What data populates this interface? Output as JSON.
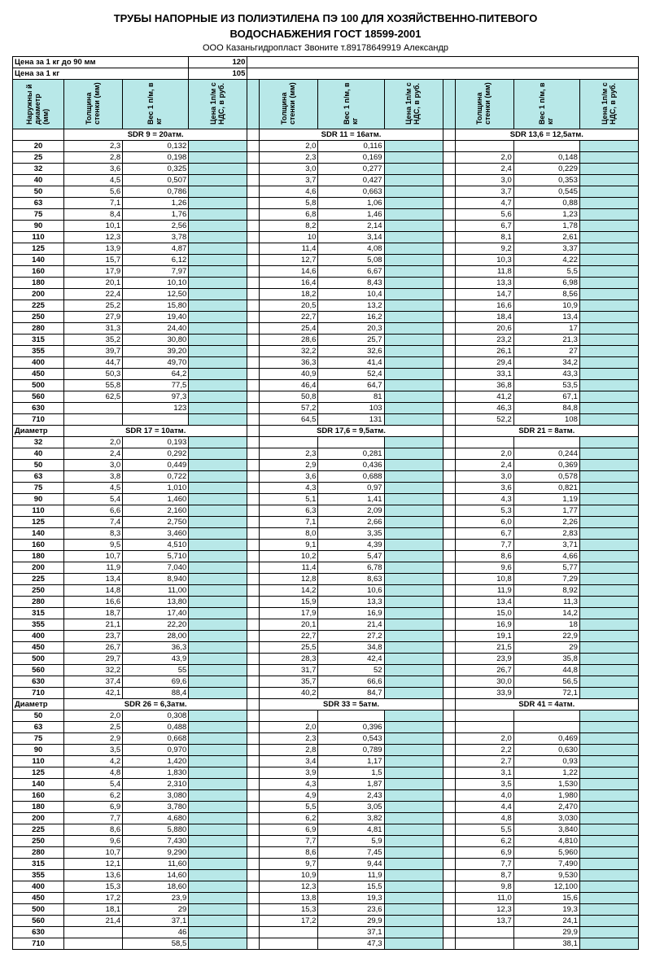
{
  "title1": "ТРУБЫ НАПОРНЫЕ ИЗ ПОЛИЭТИЛЕНА ПЭ 100 ДЛЯ ХОЗЯЙСТВЕННО-ПИТЕВОГО",
  "title2": "ВОДОСНАБЖЕНИЯ ГОСТ 18599-2001",
  "company": "ООО Казаньгидропласт    Звоните т.89178649919 Александр",
  "priceRow1_label": "Цена за 1 кг до 90  мм",
  "priceRow1_val": "120",
  "priceRow2_label": "Цена за 1 кг",
  "priceRow2_val": "105",
  "headers": {
    "diameter": "Наружны й диаметр (мм)",
    "thickness": "Толщина стенки (мм)",
    "weight": "Вес 1 п/м, в кг",
    "price": "Цена 1п/м с НДС, в руб."
  },
  "section_label": "Диаметр",
  "blocks": [
    {
      "sdr": [
        "SDR 9 = 20атм.",
        "SDR 11 = 16атм.",
        "SDR 13,6 = 12,5атм."
      ],
      "rows": [
        {
          "d": "20",
          "a": [
            "2,3",
            "0,132"
          ],
          "b": [
            "2,0",
            "0,116"
          ],
          "c": [
            "",
            ""
          ]
        },
        {
          "d": "25",
          "a": [
            "2,8",
            "0,198"
          ],
          "b": [
            "2,3",
            "0,169"
          ],
          "c": [
            "2,0",
            "0,148"
          ]
        },
        {
          "d": "32",
          "a": [
            "3,6",
            "0,325"
          ],
          "b": [
            "3,0",
            "0,277"
          ],
          "c": [
            "2,4",
            "0,229"
          ]
        },
        {
          "d": "40",
          "a": [
            "4,5",
            "0,507"
          ],
          "b": [
            "3,7",
            "0,427"
          ],
          "c": [
            "3,0",
            "0,353"
          ]
        },
        {
          "d": "50",
          "a": [
            "5,6",
            "0,786"
          ],
          "b": [
            "4,6",
            "0,663"
          ],
          "c": [
            "3,7",
            "0,545"
          ]
        },
        {
          "d": "63",
          "a": [
            "7,1",
            "1,26"
          ],
          "b": [
            "5,8",
            "1,06"
          ],
          "c": [
            "4,7",
            "0,88"
          ]
        },
        {
          "d": "75",
          "a": [
            "8,4",
            "1,76"
          ],
          "b": [
            "6,8",
            "1,46"
          ],
          "c": [
            "5,6",
            "1,23"
          ]
        },
        {
          "d": "90",
          "a": [
            "10,1",
            "2,56"
          ],
          "b": [
            "8,2",
            "2,14"
          ],
          "c": [
            "6,7",
            "1,78"
          ]
        },
        {
          "d": "110",
          "a": [
            "12,3",
            "3,78"
          ],
          "b": [
            "10",
            "3,14"
          ],
          "c": [
            "8,1",
            "2,61"
          ]
        },
        {
          "d": "125",
          "a": [
            "13,9",
            "4,87"
          ],
          "b": [
            "11,4",
            "4,08"
          ],
          "c": [
            "9,2",
            "3,37"
          ]
        },
        {
          "d": "140",
          "a": [
            "15,7",
            "6,12"
          ],
          "b": [
            "12,7",
            "5,08"
          ],
          "c": [
            "10,3",
            "4,22"
          ]
        },
        {
          "d": "160",
          "a": [
            "17,9",
            "7,97"
          ],
          "b": [
            "14,6",
            "6,67"
          ],
          "c": [
            "11,8",
            "5,5"
          ]
        },
        {
          "d": "180",
          "a": [
            "20,1",
            "10,10"
          ],
          "b": [
            "16,4",
            "8,43"
          ],
          "c": [
            "13,3",
            "6,98"
          ]
        },
        {
          "d": "200",
          "a": [
            "22,4",
            "12,50"
          ],
          "b": [
            "18,2",
            "10,4"
          ],
          "c": [
            "14,7",
            "8,56"
          ]
        },
        {
          "d": "225",
          "a": [
            "25,2",
            "15,80"
          ],
          "b": [
            "20,5",
            "13,2"
          ],
          "c": [
            "16,6",
            "10,9"
          ]
        },
        {
          "d": "250",
          "a": [
            "27,9",
            "19,40"
          ],
          "b": [
            "22,7",
            "16,2"
          ],
          "c": [
            "18,4",
            "13,4"
          ]
        },
        {
          "d": "280",
          "a": [
            "31,3",
            "24,40"
          ],
          "b": [
            "25,4",
            "20,3"
          ],
          "c": [
            "20,6",
            "17"
          ]
        },
        {
          "d": "315",
          "a": [
            "35,2",
            "30,80"
          ],
          "b": [
            "28,6",
            "25,7"
          ],
          "c": [
            "23,2",
            "21,3"
          ]
        },
        {
          "d": "355",
          "a": [
            "39,7",
            "39,20"
          ],
          "b": [
            "32,2",
            "32,6"
          ],
          "c": [
            "26,1",
            "27"
          ]
        },
        {
          "d": "400",
          "a": [
            "44,7",
            "49,70"
          ],
          "b": [
            "36,3",
            "41,4"
          ],
          "c": [
            "29,4",
            "34,2"
          ]
        },
        {
          "d": "450",
          "a": [
            "50,3",
            "64,2"
          ],
          "b": [
            "40,9",
            "52,4"
          ],
          "c": [
            "33,1",
            "43,3"
          ]
        },
        {
          "d": "500",
          "a": [
            "55,8",
            "77,5"
          ],
          "b": [
            "46,4",
            "64,7"
          ],
          "c": [
            "36,8",
            "53,5"
          ]
        },
        {
          "d": "560",
          "a": [
            "62,5",
            "97,3"
          ],
          "b": [
            "50,8",
            "81"
          ],
          "c": [
            "41,2",
            "67,1"
          ]
        },
        {
          "d": "630",
          "a": [
            "",
            "123"
          ],
          "b": [
            "57,2",
            "103"
          ],
          "c": [
            "46,3",
            "84,8"
          ]
        },
        {
          "d": "710",
          "a": [
            "",
            ""
          ],
          "b": [
            "64,5",
            "131"
          ],
          "c": [
            "52,2",
            "108"
          ]
        }
      ]
    },
    {
      "sdr": [
        "SDR 17 = 10атм.",
        "SDR 17,6 = 9,5атм.",
        "SDR 21 = 8атм."
      ],
      "rows": [
        {
          "d": "32",
          "a": [
            "2,0",
            "0,193"
          ],
          "b": [
            "",
            ""
          ],
          "c": [
            "",
            ""
          ]
        },
        {
          "d": "40",
          "a": [
            "2,4",
            "0,292"
          ],
          "b": [
            "2,3",
            "0,281"
          ],
          "c": [
            "2,0",
            "0,244"
          ]
        },
        {
          "d": "50",
          "a": [
            "3,0",
            "0,449"
          ],
          "b": [
            "2,9",
            "0,436"
          ],
          "c": [
            "2,4",
            "0,369"
          ]
        },
        {
          "d": "63",
          "a": [
            "3,8",
            "0,722"
          ],
          "b": [
            "3,6",
            "0,688"
          ],
          "c": [
            "3,0",
            "0,578"
          ]
        },
        {
          "d": "75",
          "a": [
            "4,5",
            "1,010"
          ],
          "b": [
            "4,3",
            "0,97"
          ],
          "c": [
            "3,6",
            "0,821"
          ]
        },
        {
          "d": "90",
          "a": [
            "5,4",
            "1,460"
          ],
          "b": [
            "5,1",
            "1,41"
          ],
          "c": [
            "4,3",
            "1,19"
          ]
        },
        {
          "d": "110",
          "a": [
            "6,6",
            "2,160"
          ],
          "b": [
            "6,3",
            "2,09"
          ],
          "c": [
            "5,3",
            "1,77"
          ]
        },
        {
          "d": "125",
          "a": [
            "7,4",
            "2,750"
          ],
          "b": [
            "7,1",
            "2,66"
          ],
          "c": [
            "6,0",
            "2,26"
          ]
        },
        {
          "d": "140",
          "a": [
            "8,3",
            "3,460"
          ],
          "b": [
            "8,0",
            "3,35"
          ],
          "c": [
            "6,7",
            "2,83"
          ]
        },
        {
          "d": "160",
          "a": [
            "9,5",
            "4,510"
          ],
          "b": [
            "9,1",
            "4,39"
          ],
          "c": [
            "7,7",
            "3,71"
          ]
        },
        {
          "d": "180",
          "a": [
            "10,7",
            "5,710"
          ],
          "b": [
            "10,2",
            "5,47"
          ],
          "c": [
            "8,6",
            "4,66"
          ]
        },
        {
          "d": "200",
          "a": [
            "11,9",
            "7,040"
          ],
          "b": [
            "11,4",
            "6,78"
          ],
          "c": [
            "9,6",
            "5,77"
          ]
        },
        {
          "d": "225",
          "a": [
            "13,4",
            "8,940"
          ],
          "b": [
            "12,8",
            "8,63"
          ],
          "c": [
            "10,8",
            "7,29"
          ]
        },
        {
          "d": "250",
          "a": [
            "14,8",
            "11,00"
          ],
          "b": [
            "14,2",
            "10,6"
          ],
          "c": [
            "11,9",
            "8,92"
          ]
        },
        {
          "d": "280",
          "a": [
            "16,6",
            "13,80"
          ],
          "b": [
            "15,9",
            "13,3"
          ],
          "c": [
            "13,4",
            "11,3"
          ]
        },
        {
          "d": "315",
          "a": [
            "18,7",
            "17,40"
          ],
          "b": [
            "17,9",
            "16,9"
          ],
          "c": [
            "15,0",
            "14,2"
          ]
        },
        {
          "d": "355",
          "a": [
            "21,1",
            "22,20"
          ],
          "b": [
            "20,1",
            "21,4"
          ],
          "c": [
            "16,9",
            "18"
          ]
        },
        {
          "d": "400",
          "a": [
            "23,7",
            "28,00"
          ],
          "b": [
            "22,7",
            "27,2"
          ],
          "c": [
            "19,1",
            "22,9"
          ]
        },
        {
          "d": "450",
          "a": [
            "26,7",
            "36,3"
          ],
          "b": [
            "25,5",
            "34,8"
          ],
          "c": [
            "21,5",
            "29"
          ]
        },
        {
          "d": "500",
          "a": [
            "29,7",
            "43,9"
          ],
          "b": [
            "28,3",
            "42,4"
          ],
          "c": [
            "23,9",
            "35,8"
          ]
        },
        {
          "d": "560",
          "a": [
            "32,2",
            "55"
          ],
          "b": [
            "31,7",
            "52"
          ],
          "c": [
            "26,7",
            "44,8"
          ]
        },
        {
          "d": "630",
          "a": [
            "37,4",
            "69,6"
          ],
          "b": [
            "35,7",
            "66,6"
          ],
          "c": [
            "30,0",
            "56,5"
          ]
        },
        {
          "d": "710",
          "a": [
            "42,1",
            "88,4"
          ],
          "b": [
            "40,2",
            "84,7"
          ],
          "c": [
            "33,9",
            "72,1"
          ]
        }
      ]
    },
    {
      "sdr": [
        "SDR 26 = 6,3атм.",
        "SDR 33 = 5атм.",
        "SDR 41 = 4атм."
      ],
      "rows": [
        {
          "d": "50",
          "a": [
            "2,0",
            "0,308"
          ],
          "b": [
            "",
            ""
          ],
          "c": [
            "",
            ""
          ]
        },
        {
          "d": "63",
          "a": [
            "2,5",
            "0,488"
          ],
          "b": [
            "2,0",
            "0,396"
          ],
          "c": [
            "",
            ""
          ]
        },
        {
          "d": "75",
          "a": [
            "2,9",
            "0,668"
          ],
          "b": [
            "2,3",
            "0,543"
          ],
          "c": [
            "2,0",
            "0,469"
          ]
        },
        {
          "d": "90",
          "a": [
            "3,5",
            "0,970"
          ],
          "b": [
            "2,8",
            "0,789"
          ],
          "c": [
            "2,2",
            "0,630"
          ]
        },
        {
          "d": "110",
          "a": [
            "4,2",
            "1,420"
          ],
          "b": [
            "3,4",
            "1,17"
          ],
          "c": [
            "2,7",
            "0,93"
          ]
        },
        {
          "d": "125",
          "a": [
            "4,8",
            "1,830"
          ],
          "b": [
            "3,9",
            "1,5"
          ],
          "c": [
            "3,1",
            "1,22"
          ]
        },
        {
          "d": "140",
          "a": [
            "5,4",
            "2,310"
          ],
          "b": [
            "4,3",
            "1,87"
          ],
          "c": [
            "3,5",
            "1,530"
          ]
        },
        {
          "d": "160",
          "a": [
            "6,2",
            "3,080"
          ],
          "b": [
            "4,9",
            "2,43"
          ],
          "c": [
            "4,0",
            "1,980"
          ]
        },
        {
          "d": "180",
          "a": [
            "6,9",
            "3,780"
          ],
          "b": [
            "5,5",
            "3,05"
          ],
          "c": [
            "4,4",
            "2,470"
          ]
        },
        {
          "d": "200",
          "a": [
            "7,7",
            "4,680"
          ],
          "b": [
            "6,2",
            "3,82"
          ],
          "c": [
            "4,8",
            "3,030"
          ]
        },
        {
          "d": "225",
          "a": [
            "8,6",
            "5,880"
          ],
          "b": [
            "6,9",
            "4,81"
          ],
          "c": [
            "5,5",
            "3,840"
          ]
        },
        {
          "d": "250",
          "a": [
            "9,6",
            "7,430"
          ],
          "b": [
            "7,7",
            "5,9"
          ],
          "c": [
            "6,2",
            "4,810"
          ]
        },
        {
          "d": "280",
          "a": [
            "10,7",
            "9,290"
          ],
          "b": [
            "8,6",
            "7,45"
          ],
          "c": [
            "6,9",
            "5,960"
          ]
        },
        {
          "d": "315",
          "a": [
            "12,1",
            "11,60"
          ],
          "b": [
            "9,7",
            "9,44"
          ],
          "c": [
            "7,7",
            "7,490"
          ]
        },
        {
          "d": "355",
          "a": [
            "13,6",
            "14,60"
          ],
          "b": [
            "10,9",
            "11,9"
          ],
          "c": [
            "8,7",
            "9,530"
          ]
        },
        {
          "d": "400",
          "a": [
            "15,3",
            "18,60"
          ],
          "b": [
            "12,3",
            "15,5"
          ],
          "c": [
            "9,8",
            "12,100"
          ]
        },
        {
          "d": "450",
          "a": [
            "17,2",
            "23,9"
          ],
          "b": [
            "13,8",
            "19,3"
          ],
          "c": [
            "11,0",
            "15,6"
          ]
        },
        {
          "d": "500",
          "a": [
            "18,1",
            "29"
          ],
          "b": [
            "15,3",
            "23,6"
          ],
          "c": [
            "12,3",
            "19,3"
          ]
        },
        {
          "d": "560",
          "a": [
            "21,4",
            "37,1"
          ],
          "b": [
            "17,2",
            "29,9"
          ],
          "c": [
            "13,7",
            "24,1"
          ]
        },
        {
          "d": "630",
          "a": [
            "",
            "46"
          ],
          "b": [
            "",
            "37,1"
          ],
          "c": [
            "",
            "29,9"
          ]
        },
        {
          "d": "710",
          "a": [
            "",
            "58,5"
          ],
          "b": [
            "",
            "47,3"
          ],
          "c": [
            "",
            "38,1"
          ]
        }
      ]
    }
  ]
}
